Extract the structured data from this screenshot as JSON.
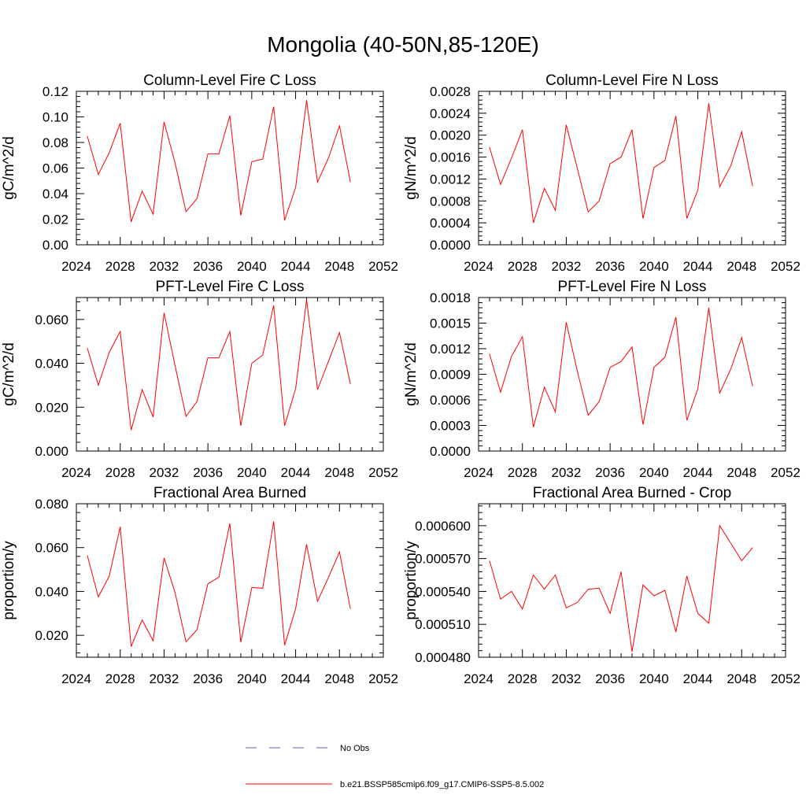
{
  "title": "Mongolia (40-50N,85-120E)",
  "legend": [
    {
      "label": "No Obs",
      "color": "#5a5acc",
      "dash": true
    },
    {
      "label": "b.e21.BSSP585cmip6.f09_g17.CMIP6-SSP5-8.5.002",
      "color": "#ff0000",
      "dash": false
    }
  ],
  "chart_data": [
    {
      "type": "line",
      "title": "Column-Level Fire C Loss",
      "ylabel": "gC/m^2/d",
      "xlim": [
        2024,
        2052
      ],
      "xticks": [
        2024,
        2028,
        2032,
        2036,
        2040,
        2044,
        2048,
        2052
      ],
      "ylim": [
        0,
        0.12
      ],
      "yticks": [
        0,
        0.02,
        0.04,
        0.06,
        0.08,
        0.1,
        0.12
      ],
      "ytick_labels": [
        "0.00",
        "0.02",
        "0.04",
        "0.06",
        "0.08",
        "0.10",
        "0.12"
      ],
      "series": [
        {
          "color": "#ff0000",
          "x": [
            2025,
            2026,
            2027,
            2028,
            2029,
            2030,
            2031,
            2032,
            2033,
            2034,
            2035,
            2036,
            2037,
            2038,
            2039,
            2040,
            2041,
            2042,
            2043,
            2044,
            2045,
            2046,
            2047,
            2048,
            2049
          ],
          "y": [
            0.085,
            0.055,
            0.072,
            0.095,
            0.018,
            0.042,
            0.024,
            0.096,
            0.064,
            0.026,
            0.036,
            0.071,
            0.071,
            0.101,
            0.023,
            0.065,
            0.067,
            0.108,
            0.019,
            0.045,
            0.113,
            0.049,
            0.068,
            0.093,
            0.049
          ]
        }
      ]
    },
    {
      "type": "line",
      "title": "Column-Level Fire N Loss",
      "ylabel": "gN/m^2/d",
      "xlim": [
        2024,
        2052
      ],
      "xticks": [
        2024,
        2028,
        2032,
        2036,
        2040,
        2044,
        2048,
        2052
      ],
      "ylim": [
        0,
        0.0028
      ],
      "yticks": [
        0,
        0.0004,
        0.0008,
        0.0012,
        0.0016,
        0.002,
        0.0024,
        0.0028
      ],
      "ytick_labels": [
        "0.0000",
        "0.0004",
        "0.0008",
        "0.0012",
        "0.0016",
        "0.0020",
        "0.0024",
        "0.0028"
      ],
      "series": [
        {
          "color": "#ff0000",
          "x": [
            2025,
            2026,
            2027,
            2028,
            2029,
            2030,
            2031,
            2032,
            2033,
            2034,
            2035,
            2036,
            2037,
            2038,
            2039,
            2040,
            2041,
            2042,
            2043,
            2044,
            2045,
            2046,
            2047,
            2048,
            2049
          ],
          "y": [
            0.00178,
            0.0011,
            0.00158,
            0.0021,
            0.0004,
            0.00103,
            0.00063,
            0.00219,
            0.0014,
            0.0006,
            0.0008,
            0.00148,
            0.0016,
            0.0021,
            0.00048,
            0.00141,
            0.00154,
            0.00235,
            0.00048,
            0.001,
            0.00258,
            0.00106,
            0.00144,
            0.00206,
            0.00107
          ]
        }
      ]
    },
    {
      "type": "line",
      "title": "PFT-Level Fire C Loss",
      "ylabel": "gC/m^2/d",
      "xlim": [
        2024,
        2052
      ],
      "xticks": [
        2024,
        2028,
        2032,
        2036,
        2040,
        2044,
        2048,
        2052
      ],
      "ylim": [
        0,
        0.07
      ],
      "yticks": [
        0,
        0.02,
        0.04,
        0.06
      ],
      "ytick_labels": [
        "0.000",
        "0.020",
        "0.040",
        "0.060"
      ],
      "series": [
        {
          "color": "#ff0000",
          "x": [
            2025,
            2026,
            2027,
            2028,
            2029,
            2030,
            2031,
            2032,
            2033,
            2034,
            2035,
            2036,
            2037,
            2038,
            2039,
            2040,
            2041,
            2042,
            2043,
            2044,
            2045,
            2046,
            2047,
            2048,
            2049
          ],
          "y": [
            0.047,
            0.03,
            0.045,
            0.0545,
            0.0095,
            0.028,
            0.0155,
            0.063,
            0.039,
            0.0158,
            0.0225,
            0.0425,
            0.0425,
            0.0545,
            0.0115,
            0.04,
            0.0438,
            0.0665,
            0.0115,
            0.0285,
            0.069,
            0.028,
            0.041,
            0.054,
            0.0305
          ]
        }
      ]
    },
    {
      "type": "line",
      "title": "PFT-Level Fire N Loss",
      "ylabel": "gN/m^2/d",
      "xlim": [
        2024,
        2052
      ],
      "xticks": [
        2024,
        2028,
        2032,
        2036,
        2040,
        2044,
        2048,
        2052
      ],
      "ylim": [
        0,
        0.0018
      ],
      "yticks": [
        0,
        0.0003,
        0.0006,
        0.0009,
        0.0012,
        0.0015,
        0.0018
      ],
      "ytick_labels": [
        "0.0000",
        "0.0003",
        "0.0006",
        "0.0009",
        "0.0012",
        "0.0015",
        "0.0018"
      ],
      "series": [
        {
          "color": "#ff0000",
          "x": [
            2025,
            2026,
            2027,
            2028,
            2029,
            2030,
            2031,
            2032,
            2033,
            2034,
            2035,
            2036,
            2037,
            2038,
            2039,
            2040,
            2041,
            2042,
            2043,
            2044,
            2045,
            2046,
            2047,
            2048,
            2049
          ],
          "y": [
            0.00114,
            0.00069,
            0.00111,
            0.00134,
            0.00028,
            0.00075,
            0.00046,
            0.00151,
            0.00094,
            0.00042,
            0.00058,
            0.00098,
            0.00105,
            0.00122,
            0.00031,
            0.00098,
            0.0011,
            0.00157,
            0.00036,
            0.00073,
            0.00168,
            0.00068,
            0.00096,
            0.00133,
            0.00076
          ]
        }
      ]
    },
    {
      "type": "line",
      "title": "Fractional Area Burned",
      "ylabel": "proportion/y",
      "xlim": [
        2024,
        2052
      ],
      "xticks": [
        2024,
        2028,
        2032,
        2036,
        2040,
        2044,
        2048,
        2052
      ],
      "ylim": [
        0.01,
        0.08
      ],
      "yticks": [
        0.02,
        0.04,
        0.06,
        0.08
      ],
      "ytick_labels": [
        "0.020",
        "0.040",
        "0.060",
        "0.080"
      ],
      "series": [
        {
          "color": "#ff0000",
          "x": [
            2025,
            2026,
            2027,
            2028,
            2029,
            2030,
            2031,
            2032,
            2033,
            2034,
            2035,
            2036,
            2037,
            2038,
            2039,
            2040,
            2041,
            2042,
            2043,
            2044,
            2045,
            2046,
            2047,
            2048,
            2049
          ],
          "y": [
            0.0565,
            0.0375,
            0.047,
            0.0695,
            0.0148,
            0.027,
            0.0175,
            0.0553,
            0.0395,
            0.017,
            0.0225,
            0.0435,
            0.0465,
            0.071,
            0.0168,
            0.0418,
            0.0415,
            0.072,
            0.0155,
            0.0322,
            0.0615,
            0.0355,
            0.0465,
            0.058,
            0.032
          ]
        }
      ]
    },
    {
      "type": "line",
      "title": "Fractional Area Burned - Crop",
      "ylabel": "proportion/y",
      "xlim": [
        2024,
        2052
      ],
      "xticks": [
        2024,
        2028,
        2032,
        2036,
        2040,
        2044,
        2048,
        2052
      ],
      "ylim": [
        0.00048,
        0.00062
      ],
      "yticks": [
        0.00048,
        0.00051,
        0.00054,
        0.00057,
        0.0006
      ],
      "ytick_labels": [
        "0.000480",
        "0.000510",
        "0.000540",
        "0.000570",
        "0.000600"
      ],
      "series": [
        {
          "color": "#ff0000",
          "x": [
            2025,
            2026,
            2027,
            2028,
            2029,
            2030,
            2031,
            2032,
            2033,
            2034,
            2035,
            2036,
            2037,
            2038,
            2039,
            2040,
            2041,
            2042,
            2043,
            2044,
            2045,
            2046,
            2047,
            2048,
            2049
          ],
          "y": [
            0.000568,
            0.000533,
            0.00054,
            0.000524,
            0.000555,
            0.000542,
            0.000555,
            0.000525,
            0.00053,
            0.000542,
            0.000543,
            0.00052,
            0.000558,
            0.000485,
            0.000546,
            0.000536,
            0.000541,
            0.000503,
            0.000554,
            0.00052,
            0.000511,
            0.0006,
            0.000584,
            0.000568,
            0.00058
          ]
        }
      ]
    }
  ]
}
